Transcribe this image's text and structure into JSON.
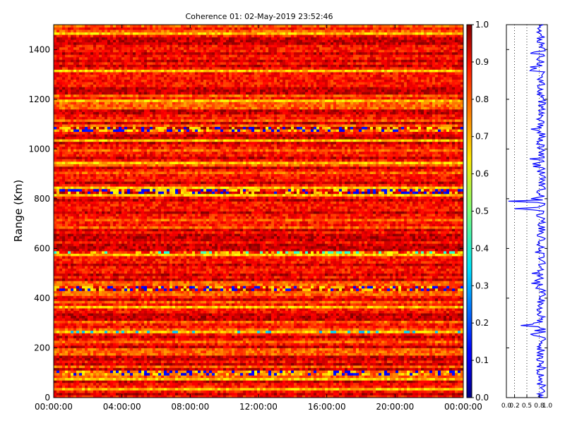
{
  "chart_data": [
    {
      "type": "heatmap",
      "title": "Coherence 01: 02-May-2019 23:52:46",
      "ylabel": "Range (Km)",
      "xlabel": "",
      "x_tick_labels": [
        "00:00:00",
        "04:00:00",
        "08:00:00",
        "12:00:00",
        "16:00:00",
        "20:00:00",
        "00:00:00"
      ],
      "x_ticks_hours": [
        0,
        4,
        8,
        12,
        16,
        20,
        24
      ],
      "xlim_hours": [
        0,
        24
      ],
      "y_ticks": [
        0,
        200,
        400,
        600,
        800,
        1000,
        1200,
        1400
      ],
      "ylim": [
        0,
        1500
      ],
      "colorbar": {
        "colormap": "jet",
        "ticks": [
          0.0,
          0.1,
          0.2,
          0.3,
          0.4,
          0.5,
          0.6,
          0.7,
          0.8,
          0.9,
          1.0
        ],
        "tick_labels": [
          "0.0",
          "0.1",
          "0.2",
          "0.3",
          "0.4",
          "0.5",
          "0.6",
          "0.7",
          "0.8",
          "0.9",
          "1.0"
        ],
        "range": [
          0,
          1
        ]
      },
      "notable_low_coherence_ranges_km": [
        {
          "range_km": 100,
          "value": 0.1
        },
        {
          "range_km": 262,
          "value": 0.3
        },
        {
          "range_km": 440,
          "value": 0.1
        },
        {
          "range_km": 585,
          "value": 0.4
        },
        {
          "range_km": 830,
          "value": 0.1
        },
        {
          "range_km": 1080,
          "value": 0.1
        }
      ]
    },
    {
      "type": "line",
      "xlim": [
        0,
        1
      ],
      "ylim": [
        0,
        1500
      ],
      "x_tick_labels": [
        "0.0",
        "0.2",
        "0.5",
        "0.8",
        "1.0"
      ],
      "x_ticks": [
        0.0,
        0.2,
        0.5,
        0.8,
        1.0
      ],
      "grid": true,
      "series_color": "#0000ff",
      "profile": [
        {
          "range_km": 0,
          "value": 0.9
        },
        {
          "range_km": 100,
          "value": 0.75
        },
        {
          "range_km": 262,
          "value": 0.78
        },
        {
          "range_km": 290,
          "value": 0.35
        },
        {
          "range_km": 440,
          "value": 0.72
        },
        {
          "range_km": 500,
          "value": 0.62
        },
        {
          "range_km": 585,
          "value": 0.7
        },
        {
          "range_km": 630,
          "value": 0.8
        },
        {
          "range_km": 760,
          "value": 0.2
        },
        {
          "range_km": 790,
          "value": 0.05
        },
        {
          "range_km": 830,
          "value": 0.75
        },
        {
          "range_km": 1000,
          "value": 0.85
        },
        {
          "range_km": 1080,
          "value": 0.6
        },
        {
          "range_km": 1300,
          "value": 0.88
        },
        {
          "range_km": 1315,
          "value": 0.58
        },
        {
          "range_km": 1500,
          "value": 0.9
        }
      ]
    }
  ]
}
